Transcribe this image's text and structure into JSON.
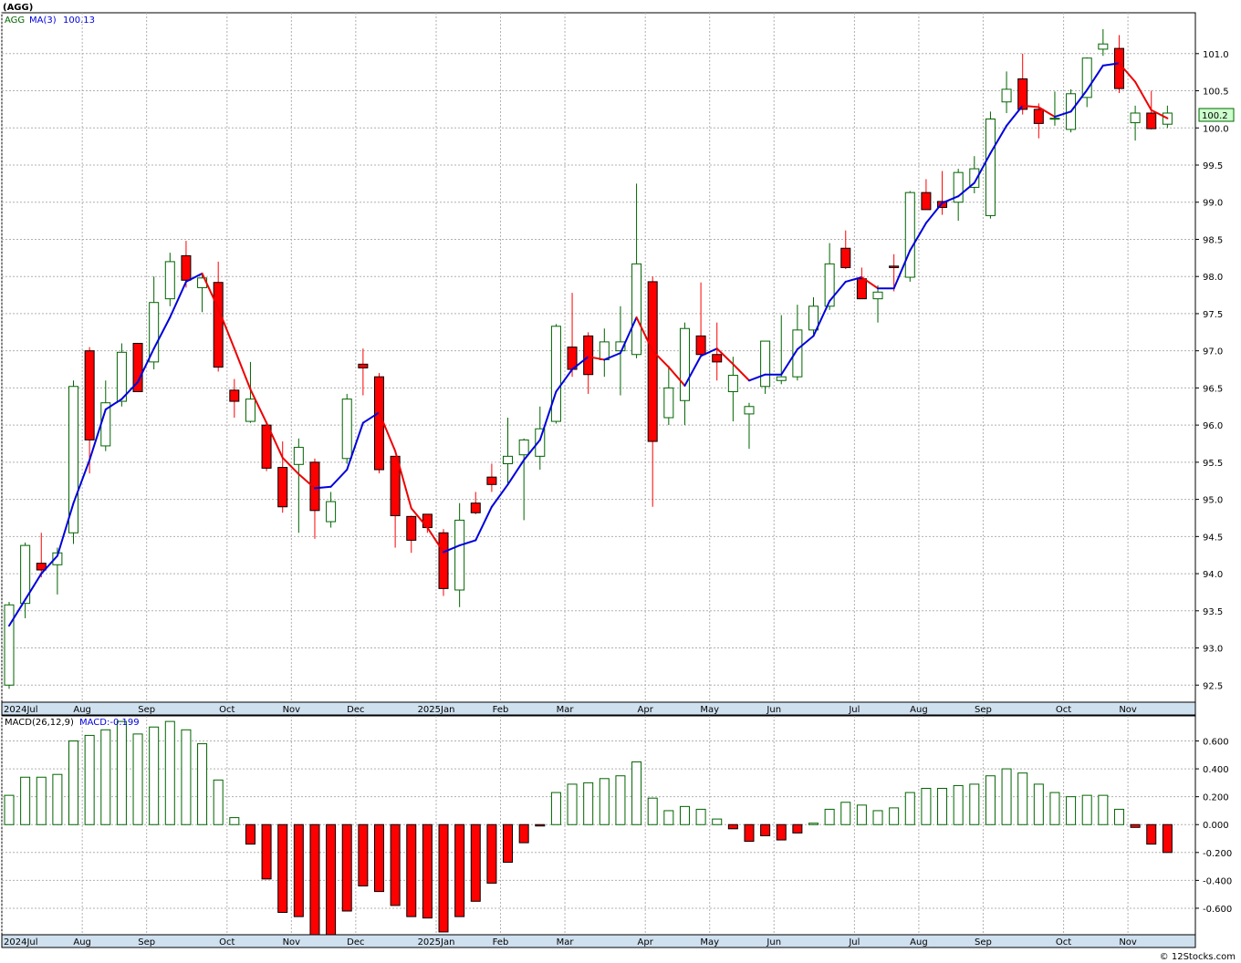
{
  "ticker_label": "(AGG)",
  "legend": {
    "symbol": "AGG",
    "ma_label": "MA(3)",
    "ma_value": "100.13",
    "macd_label": "MACD(26,12,9)",
    "macd_value_label": "MACD:-0.199"
  },
  "last_price_label": "100.2",
  "watermark": "© 12Stocks.com",
  "colors": {
    "up": "#006400",
    "down": "#ff0000",
    "ma_up": "#0000dd",
    "ma_down": "#ee0000",
    "grid": "#b0b0b0",
    "axis_band": "#cfe0ef",
    "last_price_bg": "#ccffcc"
  },
  "chart_data": [
    {
      "type": "candlestick",
      "title": "(AGG)",
      "y_ticks": [
        "92.5",
        "93.0",
        "93.5",
        "94.0",
        "94.5",
        "95.0",
        "95.5",
        "96.0",
        "96.5",
        "97.0",
        "97.5",
        "98.0",
        "98.5",
        "99.0",
        "99.5",
        "100.0",
        "100.5",
        "101.0"
      ],
      "ylim": [
        92.27,
        101.55
      ],
      "x_labels": [
        {
          "i": 0,
          "label": "2024Jul"
        },
        {
          "i": 5,
          "label": "Aug"
        },
        {
          "i": 9,
          "label": "Sep"
        },
        {
          "i": 14,
          "label": "Oct"
        },
        {
          "i": 18,
          "label": "Nov"
        },
        {
          "i": 22,
          "label": "Dec"
        },
        {
          "i": 27,
          "label": "2025Jan"
        },
        {
          "i": 31,
          "label": "Feb"
        },
        {
          "i": 35,
          "label": "Mar"
        },
        {
          "i": 40,
          "label": "Apr"
        },
        {
          "i": 44,
          "label": "May"
        },
        {
          "i": 48,
          "label": "Jun"
        },
        {
          "i": 53,
          "label": "Jul"
        },
        {
          "i": 57,
          "label": "Aug"
        },
        {
          "i": 61,
          "label": "Sep"
        },
        {
          "i": 66,
          "label": "Oct"
        },
        {
          "i": 70,
          "label": "Nov"
        }
      ],
      "series": [
        {
          "name": "AGG",
          "ohlc": [
            [
              92.5,
              93.62,
              92.45,
              93.58
            ],
            [
              93.6,
              94.42,
              93.4,
              94.38
            ],
            [
              94.14,
              94.55,
              93.95,
              94.05
            ],
            [
              94.12,
              94.35,
              93.72,
              94.28
            ],
            [
              94.55,
              96.6,
              94.4,
              96.52
            ],
            [
              97.0,
              97.05,
              95.35,
              95.8
            ],
            [
              95.72,
              96.6,
              95.65,
              96.3
            ],
            [
              96.32,
              97.1,
              96.25,
              96.98
            ],
            [
              97.1,
              97.1,
              96.45,
              96.45
            ],
            [
              96.85,
              98.0,
              96.75,
              97.65
            ],
            [
              97.7,
              98.32,
              97.6,
              98.2
            ],
            [
              98.28,
              98.48,
              97.85,
              97.95
            ],
            [
              97.85,
              98.05,
              97.52,
              97.98
            ],
            [
              97.92,
              98.2,
              96.72,
              96.78
            ],
            [
              96.47,
              96.62,
              96.1,
              96.32
            ],
            [
              96.05,
              96.85,
              96.03,
              96.35
            ],
            [
              96.0,
              96.05,
              95.38,
              95.42
            ],
            [
              95.43,
              95.78,
              94.82,
              94.9
            ],
            [
              95.47,
              95.82,
              94.55,
              95.7
            ],
            [
              95.5,
              95.55,
              94.47,
              94.85
            ],
            [
              94.7,
              95.1,
              94.62,
              94.97
            ],
            [
              95.55,
              96.42,
              95.48,
              96.35
            ],
            [
              96.82,
              97.03,
              96.4,
              96.77
            ],
            [
              96.65,
              96.7,
              95.35,
              95.4
            ],
            [
              95.58,
              95.58,
              94.35,
              94.78
            ],
            [
              94.77,
              94.78,
              94.28,
              94.45
            ],
            [
              94.8,
              94.8,
              94.55,
              94.62
            ],
            [
              94.55,
              94.6,
              93.7,
              93.8
            ],
            [
              93.78,
              94.95,
              93.55,
              94.72
            ],
            [
              94.95,
              95.1,
              94.8,
              94.82
            ],
            [
              95.3,
              95.48,
              95.1,
              95.2
            ],
            [
              95.48,
              96.1,
              95.2,
              95.58
            ],
            [
              95.6,
              95.82,
              94.72,
              95.8
            ],
            [
              95.58,
              96.25,
              95.4,
              95.95
            ],
            [
              96.05,
              97.36,
              96.02,
              97.33
            ],
            [
              97.05,
              97.78,
              96.65,
              96.75
            ],
            [
              97.2,
              97.25,
              96.42,
              96.68
            ],
            [
              96.88,
              97.3,
              96.65,
              97.12
            ],
            [
              97.0,
              97.6,
              96.4,
              97.12
            ],
            [
              96.95,
              99.25,
              96.9,
              98.17
            ],
            [
              97.93,
              98.0,
              94.9,
              95.78
            ],
            [
              96.1,
              96.8,
              96.0,
              96.5
            ],
            [
              96.33,
              97.38,
              96.0,
              97.3
            ],
            [
              97.2,
              97.92,
              96.95,
              96.95
            ],
            [
              96.95,
              97.38,
              96.6,
              96.85
            ],
            [
              96.45,
              96.92,
              96.05,
              96.67
            ],
            [
              96.15,
              96.3,
              95.68,
              96.25
            ],
            [
              96.52,
              97.13,
              96.42,
              97.13
            ],
            [
              96.6,
              97.48,
              96.55,
              96.65
            ],
            [
              96.65,
              97.62,
              96.6,
              97.28
            ],
            [
              97.28,
              97.72,
              97.22,
              97.6
            ],
            [
              97.6,
              98.45,
              97.55,
              98.17
            ],
            [
              98.38,
              98.62,
              98.1,
              98.12
            ],
            [
              97.97,
              98.12,
              97.7,
              97.7
            ],
            [
              97.7,
              97.88,
              97.38,
              97.79
            ],
            [
              98.14,
              98.3,
              97.8,
              98.12
            ],
            [
              97.99,
              99.15,
              97.93,
              99.13
            ],
            [
              99.13,
              99.31,
              98.9,
              98.9
            ],
            [
              99.01,
              99.42,
              98.83,
              98.93
            ],
            [
              99.0,
              99.45,
              98.75,
              99.4
            ],
            [
              99.2,
              99.62,
              99.12,
              99.45
            ],
            [
              98.82,
              100.22,
              98.78,
              100.12
            ],
            [
              100.35,
              100.76,
              100.2,
              100.52
            ],
            [
              100.66,
              101.0,
              100.18,
              100.25
            ],
            [
              100.25,
              100.33,
              99.86,
              100.06
            ],
            [
              100.12,
              100.49,
              100.03,
              100.13
            ],
            [
              99.98,
              100.52,
              99.94,
              100.46
            ],
            [
              100.41,
              100.95,
              100.28,
              100.94
            ],
            [
              101.06,
              101.33,
              100.97,
              101.13
            ],
            [
              101.07,
              101.25,
              100.47,
              100.53
            ],
            [
              100.07,
              100.3,
              99.83,
              100.2
            ],
            [
              100.2,
              100.5,
              99.98,
              99.99
            ],
            [
              100.05,
              100.3,
              100.0,
              100.2
            ]
          ]
        },
        {
          "name": "MA(3)",
          "values": [
            93.3,
            93.65,
            94.0,
            94.24,
            94.95,
            95.53,
            96.21,
            96.35,
            96.58,
            97.03,
            97.45,
            97.93,
            98.04,
            97.57,
            97.03,
            96.48,
            96.03,
            95.56,
            95.34,
            95.15,
            95.17,
            95.4,
            96.03,
            96.17,
            95.65,
            94.88,
            94.62,
            94.29,
            94.38,
            94.45,
            94.9,
            95.2,
            95.53,
            95.8,
            96.45,
            96.75,
            96.92,
            96.88,
            96.97,
            97.45,
            97.0,
            96.78,
            96.53,
            96.93,
            97.03,
            96.82,
            96.6,
            96.68,
            96.68,
            97.02,
            97.2,
            97.67,
            97.93,
            97.99,
            97.84,
            97.84,
            98.35,
            98.72,
            98.99,
            99.08,
            99.26,
            99.66,
            100.03,
            100.3,
            100.28,
            100.15,
            100.22,
            100.51,
            100.84,
            100.87,
            100.62,
            100.24,
            100.13
          ]
        }
      ]
    },
    {
      "type": "bar",
      "title": "MACD(26,12,9)",
      "y_ticks": [
        "0.600",
        "0.400",
        "0.200",
        "0.000",
        "-0.200",
        "-0.400",
        "-0.600"
      ],
      "ylim": [
        -0.79,
        0.78
      ],
      "values": [
        0.21,
        0.34,
        0.34,
        0.36,
        0.6,
        0.64,
        0.68,
        0.74,
        0.65,
        0.7,
        0.74,
        0.68,
        0.58,
        0.32,
        0.05,
        -0.14,
        -0.39,
        -0.63,
        -0.66,
        -0.8,
        -0.8,
        -0.62,
        -0.44,
        -0.48,
        -0.58,
        -0.66,
        -0.67,
        -0.77,
        -0.66,
        -0.55,
        -0.42,
        -0.27,
        -0.13,
        -0.01,
        0.23,
        0.29,
        0.3,
        0.33,
        0.35,
        0.45,
        0.19,
        0.1,
        0.13,
        0.11,
        0.04,
        -0.03,
        -0.12,
        -0.08,
        -0.11,
        -0.06,
        0.01,
        0.11,
        0.16,
        0.14,
        0.1,
        0.12,
        0.23,
        0.26,
        0.26,
        0.28,
        0.29,
        0.35,
        0.4,
        0.37,
        0.29,
        0.23,
        0.2,
        0.21,
        0.21,
        0.11,
        -0.02,
        -0.14,
        -0.2
      ]
    }
  ]
}
